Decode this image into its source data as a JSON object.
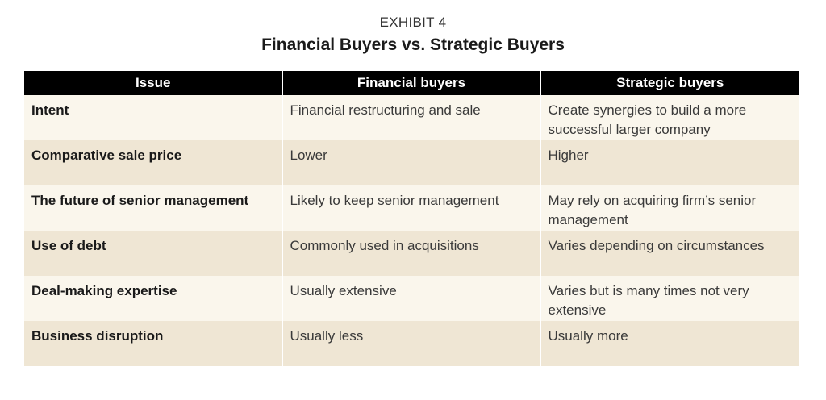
{
  "exhibit_label": "EXHIBIT 4",
  "title": "Financial Buyers vs. Strategic Buyers",
  "table": {
    "headers": [
      "Issue",
      "Financial buyers",
      "Strategic buyers"
    ],
    "rows": [
      {
        "issue": "Intent",
        "financial": "Financial restructuring and sale",
        "strategic": "Create synergies to build a more successful larger company"
      },
      {
        "issue": "Comparative sale price",
        "financial": "Lower",
        "strategic": "Higher"
      },
      {
        "issue": "The future of senior management",
        "financial": "Likely to keep senior management",
        "strategic": "May rely on acquiring firm’s senior management"
      },
      {
        "issue": "Use of debt",
        "financial": "Commonly used in acquisitions",
        "strategic": "Varies depending on circumstances"
      },
      {
        "issue": "Deal-making expertise",
        "financial": "Usually extensive",
        "strategic": "Varies but is many times not very extensive"
      },
      {
        "issue": "Business disruption",
        "financial": "Usually less",
        "strategic": "Usually more"
      }
    ]
  },
  "colors": {
    "header_bg": "#000000",
    "row_light": "#faf6ec",
    "row_dark": "#efe6d4"
  }
}
